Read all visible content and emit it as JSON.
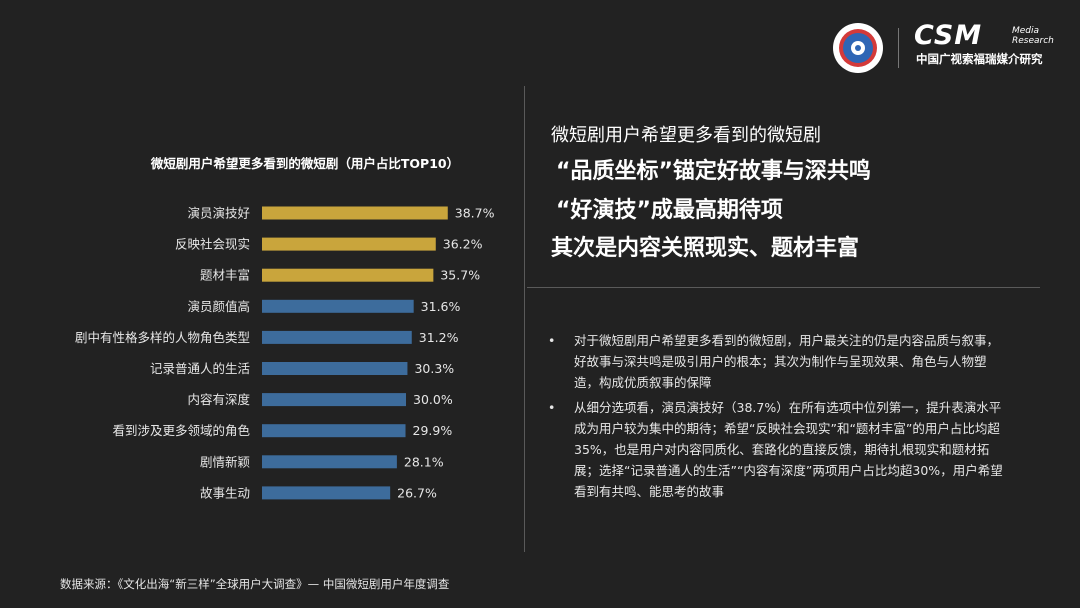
{
  "logo": {
    "brand": "CSM",
    "sub_line1": "Media",
    "sub_line2": "Research",
    "cn_name": "中国广视索福瑞媒介研究"
  },
  "chart_data": {
    "type": "bar",
    "orientation": "horizontal",
    "title": "微短剧用户希望更多看到的微短剧（用户占比TOP10）",
    "categories": [
      "演员演技好",
      "反映社会现实",
      "题材丰富",
      "演员颜值高",
      "剧中有性格多样的人物角色类型",
      "记录普通人的生活",
      "内容有深度",
      "看到涉及更多领域的角色",
      "剧情新颖",
      "故事生动"
    ],
    "values": [
      38.7,
      36.2,
      35.7,
      31.6,
      31.2,
      30.3,
      30.0,
      29.9,
      28.1,
      26.7
    ],
    "value_labels": [
      "38.7%",
      "36.2%",
      "35.7%",
      "31.6%",
      "31.2%",
      "30.3%",
      "30.0%",
      "29.9%",
      "28.1%",
      "26.7%"
    ],
    "highlight_count": 3,
    "colors": {
      "highlight": "#c9a53c",
      "default": "#3d6c9c"
    },
    "xlim": [
      0,
      40
    ],
    "grid": false,
    "legend": "none"
  },
  "right_panel": {
    "line1": "微短剧用户希望更多看到的微短剧",
    "line2": "“品质坐标”锚定好故事与深共鸣",
    "line3": "“好演技”成最高期待项",
    "line4": "其次是内容关照现实、题材丰富",
    "bullets": [
      "对于微短剧用户希望更多看到的微短剧，用户最关注的仍是内容品质与叙事，好故事与深共鸣是吸引用户的根本；其次为制作与呈现效果、角色与人物塑造，构成优质叙事的保障",
      "从细分选项看，演员演技好（38.7%）在所有选项中位列第一，提升表演水平成为用户较为集中的期待；希望“反映社会现实”和“题材丰富”的用户占比均超35%，也是用户对内容同质化、套路化的直接反馈，期待扎根现实和题材拓展；选择“记录普通人的生活”“内容有深度”两项用户占比均超30%，用户希望看到有共鸣、能思考的故事"
    ],
    "bullet_char": "•"
  },
  "source_note": "数据来源：《文化出海“新三样”全球用户大调查》— 中国微短剧用户年度调查"
}
